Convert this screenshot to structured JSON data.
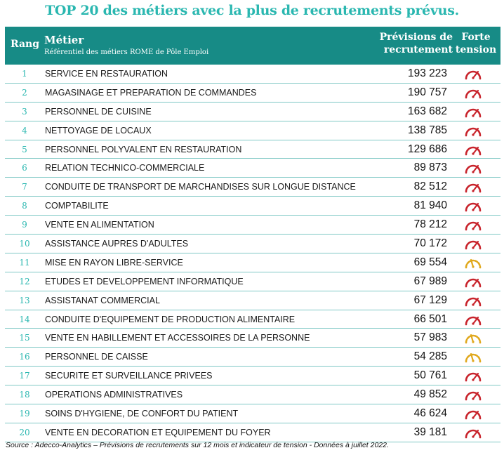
{
  "title": "TOP 20 des métiers avec la plus de recrutements prévus.",
  "header": {
    "rang": "Rang",
    "metier": "Métier",
    "metier_sub": "Référentiel des métiers ROME de Pôle Emploi",
    "prevision_line1": "Prévisions de",
    "prevision_line2": "recrutement",
    "tension_line1": "Forte",
    "tension_line2": "tension"
  },
  "colors": {
    "accent": "#2ab7b0",
    "header_bg": "#178b86",
    "gauge_high": "#c8232b",
    "gauge_medium": "#e0a81c"
  },
  "rows": [
    {
      "rang": "1",
      "metier": "SERVICE EN RESTAURATION",
      "prevision": "193 223",
      "tension": "high"
    },
    {
      "rang": "2",
      "metier": "MAGASINAGE ET PREPARATION DE COMMANDES",
      "prevision": "190 757",
      "tension": "high"
    },
    {
      "rang": "3",
      "metier": "PERSONNEL DE CUISINE",
      "prevision": "163 682",
      "tension": "high"
    },
    {
      "rang": "4",
      "metier": "NETTOYAGE DE LOCAUX",
      "prevision": "138 785",
      "tension": "high"
    },
    {
      "rang": "5",
      "metier": "PERSONNEL POLYVALENT EN RESTAURATION",
      "prevision": "129 686",
      "tension": "high"
    },
    {
      "rang": "6",
      "metier": "RELATION TECHNICO-COMMERCIALE",
      "prevision": "89 873",
      "tension": "high"
    },
    {
      "rang": "7",
      "metier": "CONDUITE DE TRANSPORT DE MARCHANDISES SUR LONGUE DISTANCE",
      "prevision": "82 512",
      "tension": "high"
    },
    {
      "rang": "8",
      "metier": "COMPTABILITE",
      "prevision": "81 940",
      "tension": "high"
    },
    {
      "rang": "9",
      "metier": "VENTE EN ALIMENTATION",
      "prevision": "78 212",
      "tension": "high"
    },
    {
      "rang": "10",
      "metier": "ASSISTANCE AUPRES D'ADULTES",
      "prevision": "70 172",
      "tension": "high"
    },
    {
      "rang": "11",
      "metier": "MISE EN RAYON LIBRE-SERVICE",
      "prevision": "69 554",
      "tension": "medium"
    },
    {
      "rang": "12",
      "metier": "ETUDES ET DEVELOPPEMENT INFORMATIQUE",
      "prevision": "67 989",
      "tension": "high"
    },
    {
      "rang": "13",
      "metier": "ASSISTANAT COMMERCIAL",
      "prevision": "67 129",
      "tension": "high"
    },
    {
      "rang": "14",
      "metier": "CONDUITE D'EQUIPEMENT DE PRODUCTION ALIMENTAIRE",
      "prevision": "66 501",
      "tension": "high"
    },
    {
      "rang": "15",
      "metier": "VENTE EN HABILLEMENT ET ACCESSOIRES DE LA PERSONNE",
      "prevision": "57 983",
      "tension": "medium"
    },
    {
      "rang": "16",
      "metier": "PERSONNEL DE CAISSE",
      "prevision": "54 285",
      "tension": "medium"
    },
    {
      "rang": "17",
      "metier": "SECURITE ET SURVEILLANCE PRIVEES",
      "prevision": "50 761",
      "tension": "high"
    },
    {
      "rang": "18",
      "metier": "OPERATIONS ADMINISTRATIVES",
      "prevision": "49 852",
      "tension": "high"
    },
    {
      "rang": "19",
      "metier": "SOINS D'HYGIENE, DE CONFORT DU PATIENT",
      "prevision": "46 624",
      "tension": "high"
    },
    {
      "rang": "20",
      "metier": "VENTE EN DECORATION ET EQUIPEMENT DU FOYER",
      "prevision": "39 181",
      "tension": "high"
    }
  ],
  "source": "Source : Adecco-Analytics – Prévisions de recrutements sur 12 mois et indicateur de tension - Données à juillet 2022."
}
